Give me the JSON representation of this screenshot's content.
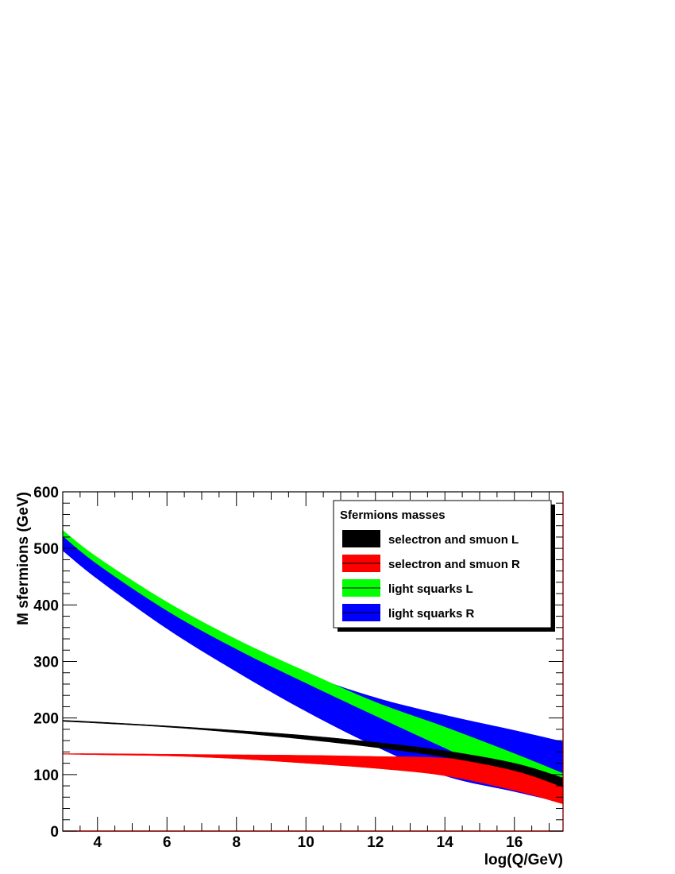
{
  "chart_data": {
    "type": "area",
    "title": "",
    "xlabel": "log(Q/GeV)",
    "ylabel": "M sfermions (GeV)",
    "xlim": [
      3.0,
      17.4
    ],
    "ylim": [
      0,
      600
    ],
    "x_ticks": [
      "4",
      "6",
      "8",
      "10",
      "12",
      "14",
      "16"
    ],
    "y_ticks": [
      "0",
      "100",
      "200",
      "300",
      "400",
      "500",
      "600"
    ],
    "grid": false,
    "legend": {
      "title": "Sfermions masses",
      "position": "top-right"
    },
    "series": [
      {
        "name": "light squarks R",
        "color": "#0000ff",
        "x": [
          3.0,
          4.0,
          6.0,
          8.0,
          10.0,
          12.0,
          14.0,
          16.0,
          17.4
        ],
        "upper": [
          522,
          476,
          398,
          334,
          278,
          236,
          205,
          178,
          158
        ],
        "lower": [
          496,
          446,
          358,
          282,
          212,
          150,
          98,
          70,
          50
        ]
      },
      {
        "name": "light squarks L",
        "color": "#00ff00",
        "x": [
          3.0,
          4.0,
          6.0,
          8.0,
          10.0,
          12.0,
          14.0,
          16.0,
          17.4
        ],
        "upper": [
          532,
          484,
          405,
          339,
          282,
          228,
          184,
          137,
          102
        ],
        "lower": [
          522,
          472,
          390,
          322,
          262,
          204,
          147,
          91,
          55
        ]
      },
      {
        "name": "selectron and smuon R",
        "color": "#ff0000",
        "x": [
          3.0,
          4.0,
          6.0,
          8.0,
          10.0,
          12.0,
          14.0,
          16.0,
          17.4
        ],
        "upper": [
          137,
          137,
          136,
          135,
          134,
          132,
          129,
          115,
          88
        ],
        "lower": [
          136,
          135,
          133,
          128,
          120,
          111,
          98,
          72,
          48
        ]
      },
      {
        "name": "selectron and smuon L",
        "color": "#000000",
        "x": [
          3.0,
          4.0,
          6.0,
          8.0,
          10.0,
          12.0,
          14.0,
          16.0,
          17.4
        ],
        "upper": [
          196,
          193,
          186,
          178,
          169,
          157,
          142,
          120,
          94
        ],
        "lower": [
          194,
          191,
          184,
          174,
          162,
          148,
          131,
          107,
          78
        ]
      }
    ],
    "legend_entries": [
      {
        "label": "selectron and smuon L",
        "color": "#000000"
      },
      {
        "label": "selectron and smuon R",
        "color": "#ff0000"
      },
      {
        "label": "light squarks L",
        "color": "#00ff00"
      },
      {
        "label": "light squarks R",
        "color": "#0000ff"
      }
    ]
  }
}
